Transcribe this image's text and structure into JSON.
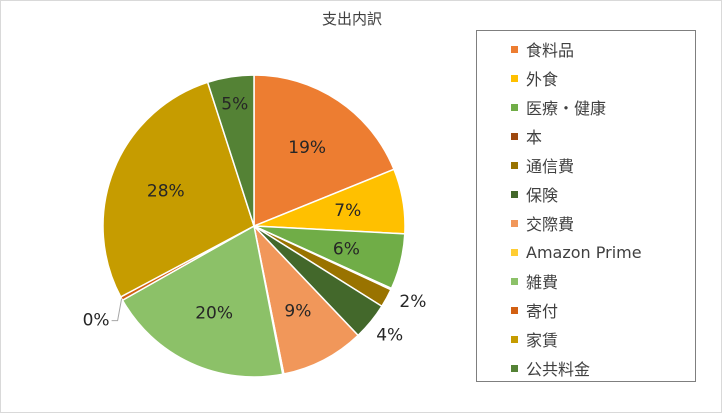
{
  "chart_data": {
    "type": "pie",
    "title": "支出内訳",
    "legend_position": "right",
    "categories": [
      "食料品",
      "外食",
      "医療・健康",
      "本",
      "通信費",
      "保険",
      "交際費",
      "Amazon Prime",
      "雑費",
      "寄付",
      "家賃",
      "公共料金"
    ],
    "values": [
      19,
      7,
      6,
      0,
      2,
      4,
      9,
      0,
      20,
      0,
      28,
      5
    ],
    "value_labels": [
      "19%",
      "7%",
      "6%",
      "",
      "2%",
      "4%",
      "9%",
      "",
      "20%",
      "0%",
      "28%",
      "5%"
    ],
    "colors": [
      "#ED7D31",
      "#FFC000",
      "#70AD47",
      "#9E480E",
      "#997300",
      "#43682B",
      "#F1975A",
      "#FFCD33",
      "#8CC168",
      "#D26012",
      "#C69C00",
      "#548235"
    ]
  }
}
